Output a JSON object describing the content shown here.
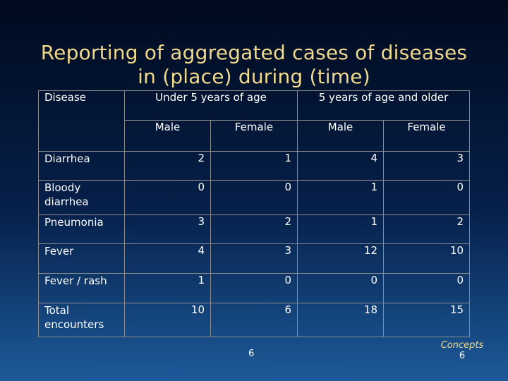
{
  "title": {
    "line1": "Reporting of aggregated cases of diseases",
    "line2": "in (place) during (time)"
  },
  "table": {
    "disease_header": "Disease",
    "groups": [
      "Under 5 years of age",
      "5 years of age and older"
    ],
    "subheaders": [
      "Male",
      "Female",
      "Male",
      "Female"
    ],
    "rows": [
      {
        "name": "Diarrhea",
        "values": [
          "2",
          "1",
          "4",
          "3"
        ]
      },
      {
        "name": "Bloody diarrhea",
        "values": [
          "0",
          "0",
          "1",
          "0"
        ]
      },
      {
        "name": "Pneumonia",
        "values": [
          "3",
          "2",
          "1",
          "2"
        ]
      },
      {
        "name": "Fever",
        "values": [
          "4",
          "3",
          "12",
          "10"
        ]
      },
      {
        "name": "Fever / rash",
        "values": [
          "1",
          "0",
          "0",
          "0"
        ]
      },
      {
        "name": "Total encounters",
        "values": [
          "10",
          "6",
          "18",
          "15"
        ]
      }
    ]
  },
  "footer": {
    "page_number": "6",
    "concepts_label": "Concepts",
    "concepts_number": "6"
  }
}
